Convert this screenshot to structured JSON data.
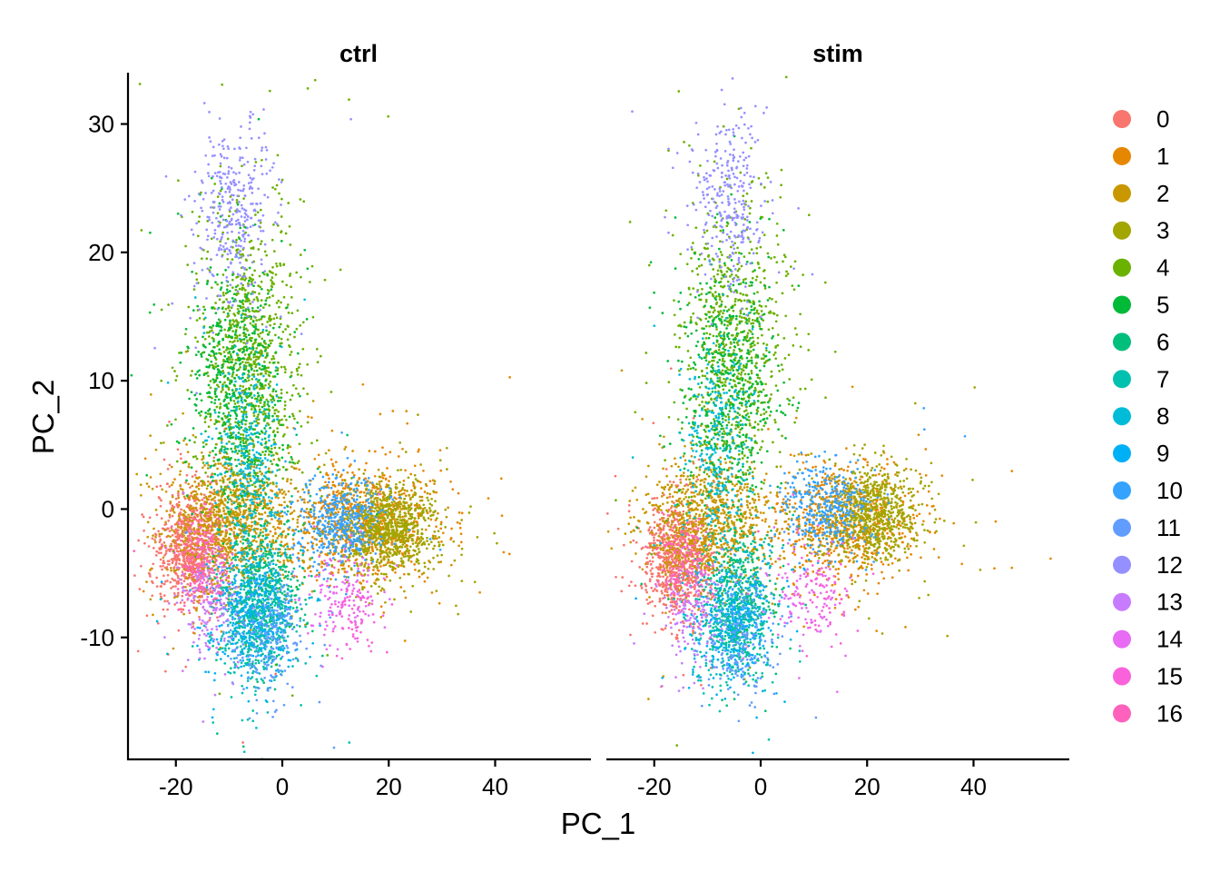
{
  "chart_data": {
    "type": "scatter",
    "title": "",
    "xlabel": "PC_1",
    "ylabel": "PC_2",
    "xlim": [
      -29,
      58
    ],
    "ylim": [
      -19.5,
      34
    ],
    "x_ticks": [
      -20,
      0,
      20,
      40
    ],
    "x_tick_labels": [
      "-20",
      "0",
      "20",
      "40"
    ],
    "y_ticks": [
      -10,
      0,
      10,
      20,
      30
    ],
    "y_tick_labels": [
      "-10",
      "0",
      "10",
      "20",
      "30"
    ],
    "grid": false,
    "legend_position": "right",
    "panels": [
      {
        "label": "ctrl"
      },
      {
        "label": "stim"
      }
    ],
    "series": [
      {
        "name": "0",
        "color": "#F8766D",
        "centers": {
          "ctrl": [
            -17,
            -3
          ],
          "stim": [
            -16,
            -4
          ]
        }
      },
      {
        "name": "1",
        "color": "#E58700",
        "centers": {
          "ctrl": [
            15,
            -1
          ],
          "stim": [
            16,
            -1
          ]
        }
      },
      {
        "name": "2",
        "color": "#C99800",
        "centers": {
          "ctrl": [
            -10,
            -1
          ],
          "stim": [
            -10,
            -1
          ]
        }
      },
      {
        "name": "3",
        "color": "#A3A500",
        "centers": {
          "ctrl": [
            20,
            -1.5
          ],
          "stim": [
            21,
            -0.5
          ]
        }
      },
      {
        "name": "4",
        "color": "#6BB100",
        "centers": {
          "ctrl": [
            -6,
            12
          ],
          "stim": [
            -5,
            13
          ]
        }
      },
      {
        "name": "5",
        "color": "#00BA38",
        "centers": {
          "ctrl": [
            -8,
            9
          ],
          "stim": [
            -6,
            10
          ]
        }
      },
      {
        "name": "6",
        "color": "#00BF7D",
        "centers": {
          "ctrl": [
            -3,
            -6
          ],
          "stim": [
            -4,
            -7
          ]
        }
      },
      {
        "name": "7",
        "color": "#00C0AF",
        "centers": {
          "ctrl": [
            -5,
            -9
          ],
          "stim": [
            -6,
            -9
          ]
        }
      },
      {
        "name": "8",
        "color": "#00BCD8",
        "centers": {
          "ctrl": [
            -7,
            4
          ],
          "stim": [
            -8,
            5
          ]
        }
      },
      {
        "name": "9",
        "color": "#00B0F6",
        "centers": {
          "ctrl": [
            -6,
            -8
          ],
          "stim": [
            -5,
            -9
          ]
        }
      },
      {
        "name": "10",
        "color": "#35A2FF",
        "centers": {
          "ctrl": [
            11,
            -1
          ],
          "stim": [
            12,
            0
          ]
        }
      },
      {
        "name": "11",
        "color": "#619CFF",
        "centers": {
          "ctrl": [
            -3,
            -10
          ],
          "stim": [
            -4,
            -10
          ]
        }
      },
      {
        "name": "12",
        "color": "#9590FF",
        "centers": {
          "ctrl": [
            -9,
            23
          ],
          "stim": [
            -6,
            24
          ]
        }
      },
      {
        "name": "13",
        "color": "#C77CFF",
        "centers": {
          "ctrl": [
            -14,
            -7
          ],
          "stim": [
            -13,
            -8
          ]
        }
      },
      {
        "name": "14",
        "color": "#E76BF3",
        "centers": {
          "ctrl": [
            11,
            -7
          ],
          "stim": [
            9,
            -7
          ]
        }
      },
      {
        "name": "15",
        "color": "#FA62DB",
        "centers": {
          "ctrl": [
            13,
            -8
          ],
          "stim": [
            11,
            -7
          ]
        }
      },
      {
        "name": "16",
        "color": "#FF62BC",
        "centers": {
          "ctrl": [
            -15,
            -4
          ],
          "stim": [
            -14,
            -4
          ]
        }
      }
    ]
  }
}
